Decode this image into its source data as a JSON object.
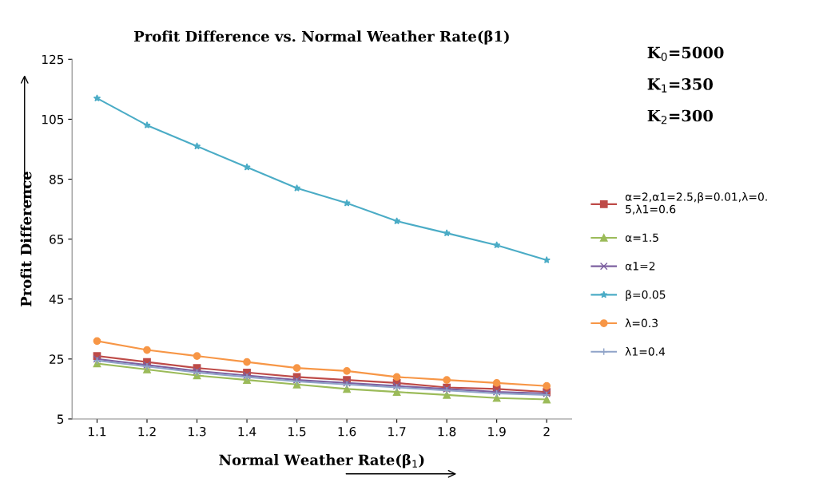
{
  "chart_data": {
    "type": "line",
    "title": "Profit Difference vs. Normal Weather Rate(β1)",
    "xlabel": "Normal Weather Rate(β$_{1}$)",
    "ylabel": "Profit Difference",
    "categories": [
      "1.1",
      "1.2",
      "1.3",
      "1.4",
      "1.5",
      "1.6",
      "1.7",
      "1.8",
      "1.9",
      "2"
    ],
    "ylim": [
      5,
      125
    ],
    "yticks": [
      5,
      25,
      45,
      65,
      85,
      105,
      125
    ],
    "grid": false,
    "legend": "right",
    "annotations": [
      "K$_{0}$=5000",
      "K$_{1}$=350",
      "K$_{2}$=300"
    ],
    "series": [
      {
        "name": "α=2,α1=2.5,β=0.01,λ=0.5,λ1=0.6",
        "color": "#be4b48",
        "marker": "square",
        "values": [
          26,
          24,
          22,
          20.5,
          19,
          18,
          17,
          15.5,
          15,
          14
        ]
      },
      {
        "name": "α=1.5",
        "color": "#9bbb59",
        "marker": "triangle",
        "values": [
          23.5,
          21.5,
          19.5,
          18,
          16.5,
          15,
          14,
          13,
          12,
          11.5
        ]
      },
      {
        "name": "α1=2",
        "color": "#7d60a0",
        "marker": "cross",
        "values": [
          25,
          23,
          21,
          19.5,
          18,
          17,
          16,
          15,
          14,
          13.5
        ]
      },
      {
        "name": "β=0.05",
        "color": "#4bacc6",
        "marker": "star",
        "values": [
          112,
          103,
          96,
          89,
          82,
          77,
          71,
          67,
          63,
          58
        ]
      },
      {
        "name": "λ=0.3",
        "color": "#f79646",
        "marker": "circle",
        "values": [
          31,
          28,
          26,
          24,
          22,
          21,
          19,
          18,
          17,
          16
        ]
      },
      {
        "name": "λ1=0.4",
        "color": "#8fa3c8",
        "marker": "plus",
        "values": [
          24.5,
          22.5,
          20.5,
          19,
          17.5,
          16.5,
          15.5,
          14.5,
          13.5,
          13
        ]
      }
    ]
  }
}
